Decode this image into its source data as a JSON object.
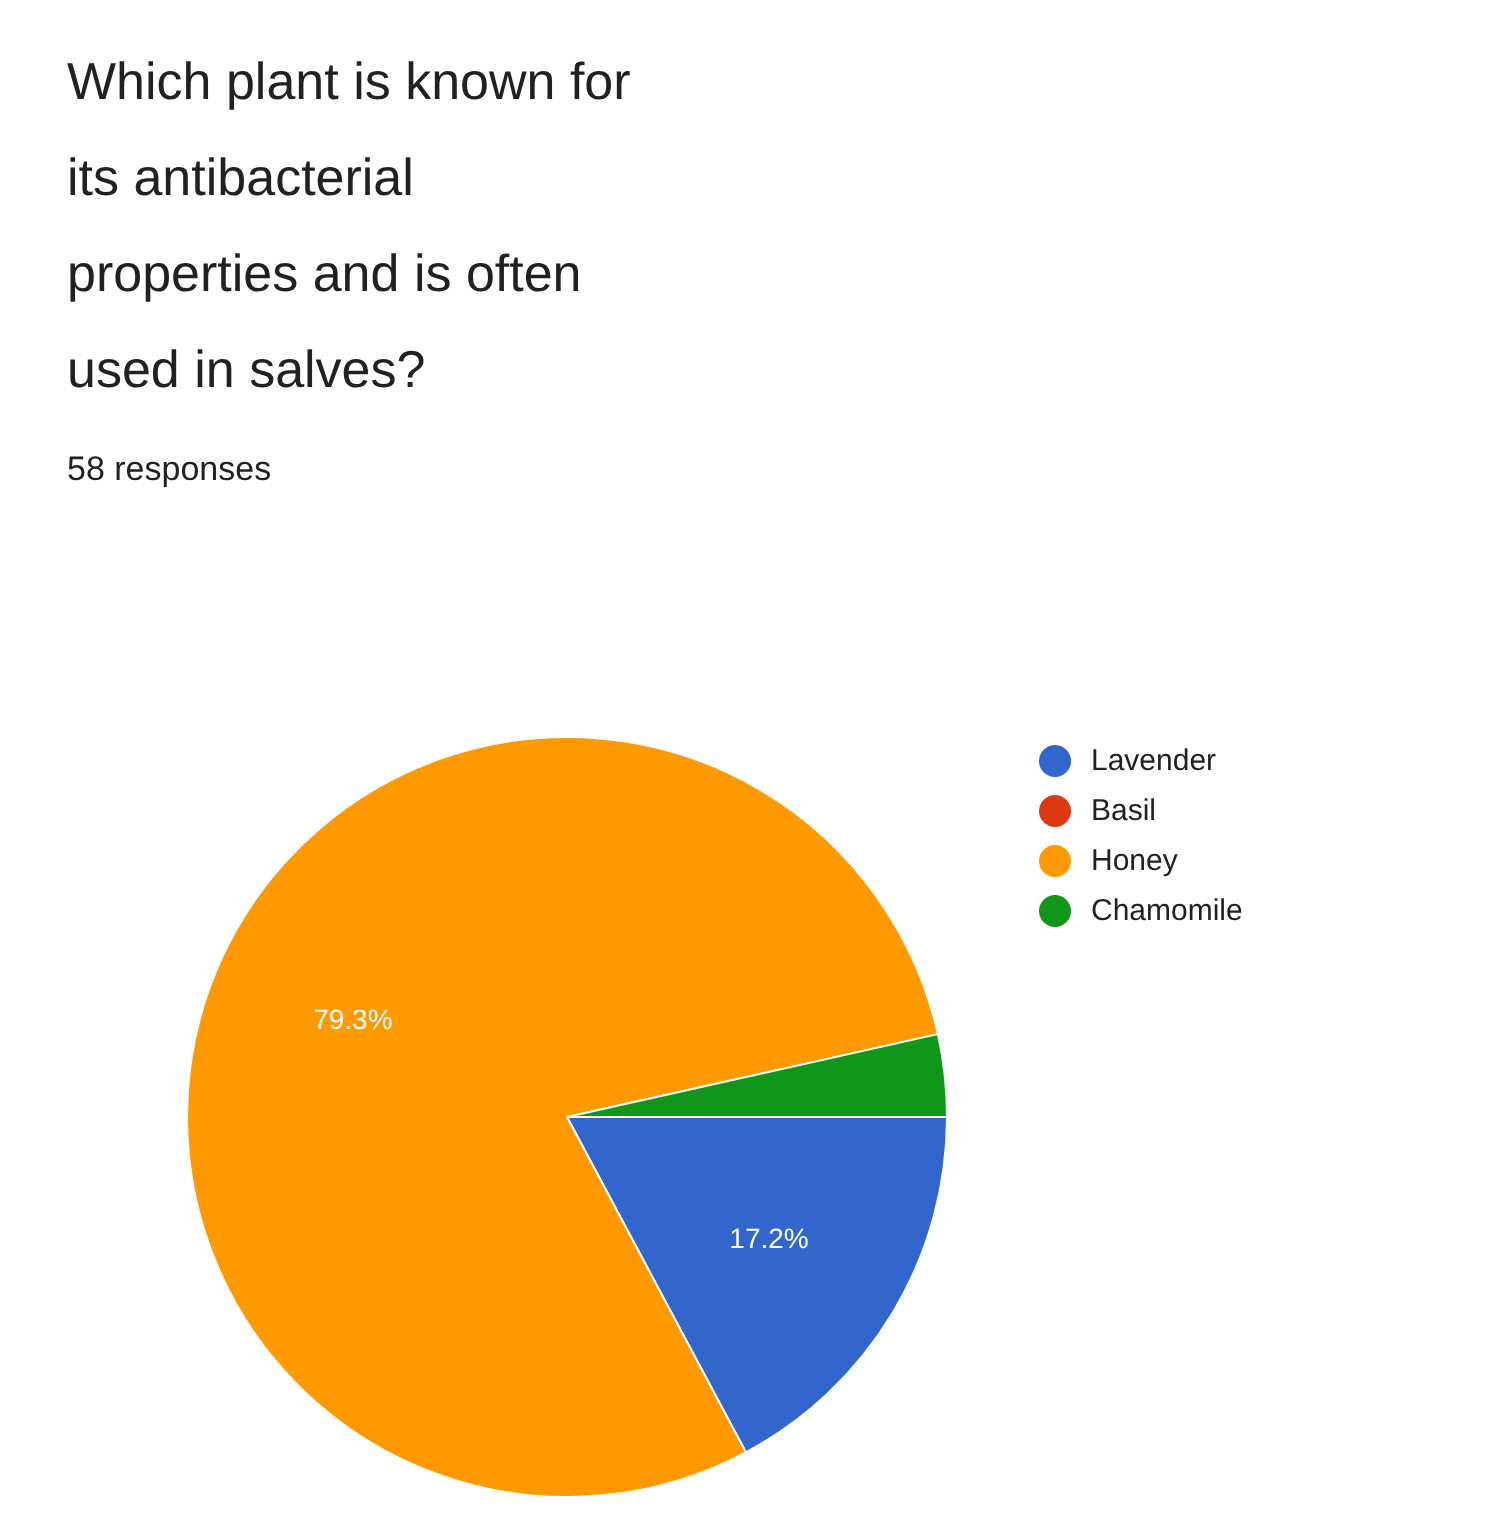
{
  "chart_data": {
    "type": "pie",
    "title": "Which plant is known for its antibacterial properties and is often used in salves?",
    "subtitle": "58 responses",
    "categories": [
      "Lavender",
      "Basil",
      "Honey",
      "Chamomile"
    ],
    "values": [
      17.2,
      0,
      79.3,
      3.5
    ],
    "colors": [
      "#3366cc",
      "#dc3912",
      "#ff9900",
      "#109618"
    ],
    "value_labels": [
      "17.2%",
      null,
      "79.3%",
      null
    ],
    "legend": "right"
  }
}
